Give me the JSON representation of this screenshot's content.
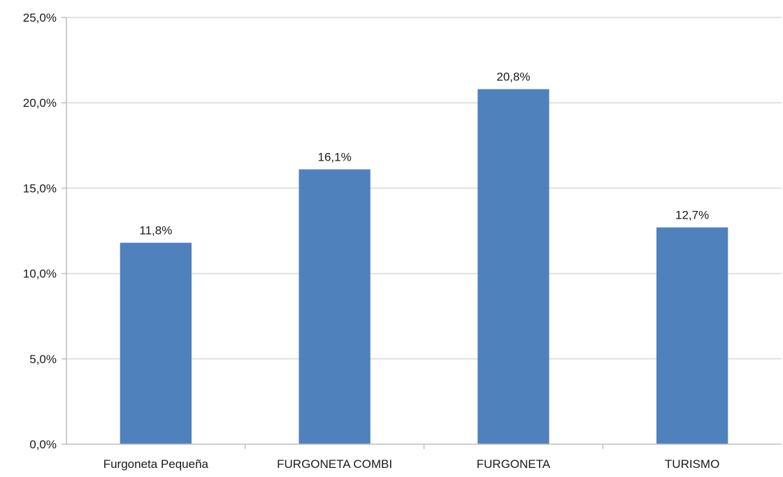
{
  "chart_data": {
    "type": "bar",
    "categories": [
      "Furgoneta Pequeña",
      "FURGONETA COMBI",
      "FURGONETA",
      "TURISMO"
    ],
    "values": [
      11.8,
      16.1,
      20.8,
      12.7
    ],
    "data_labels": [
      "11,8%",
      "16,1%",
      "20,8%",
      "12,7%"
    ],
    "y_ticks": [
      0,
      5,
      10,
      15,
      20,
      25
    ],
    "y_tick_labels": [
      "0,0%",
      "5,0%",
      "10,0%",
      "15,0%",
      "20,0%",
      "25,0%"
    ],
    "ylim": [
      0,
      25
    ],
    "grid": true,
    "legend": "none",
    "bar_color": "#4f81bd",
    "grid_color": "#d9d9d9",
    "axis_color": "#bfbfbf"
  }
}
